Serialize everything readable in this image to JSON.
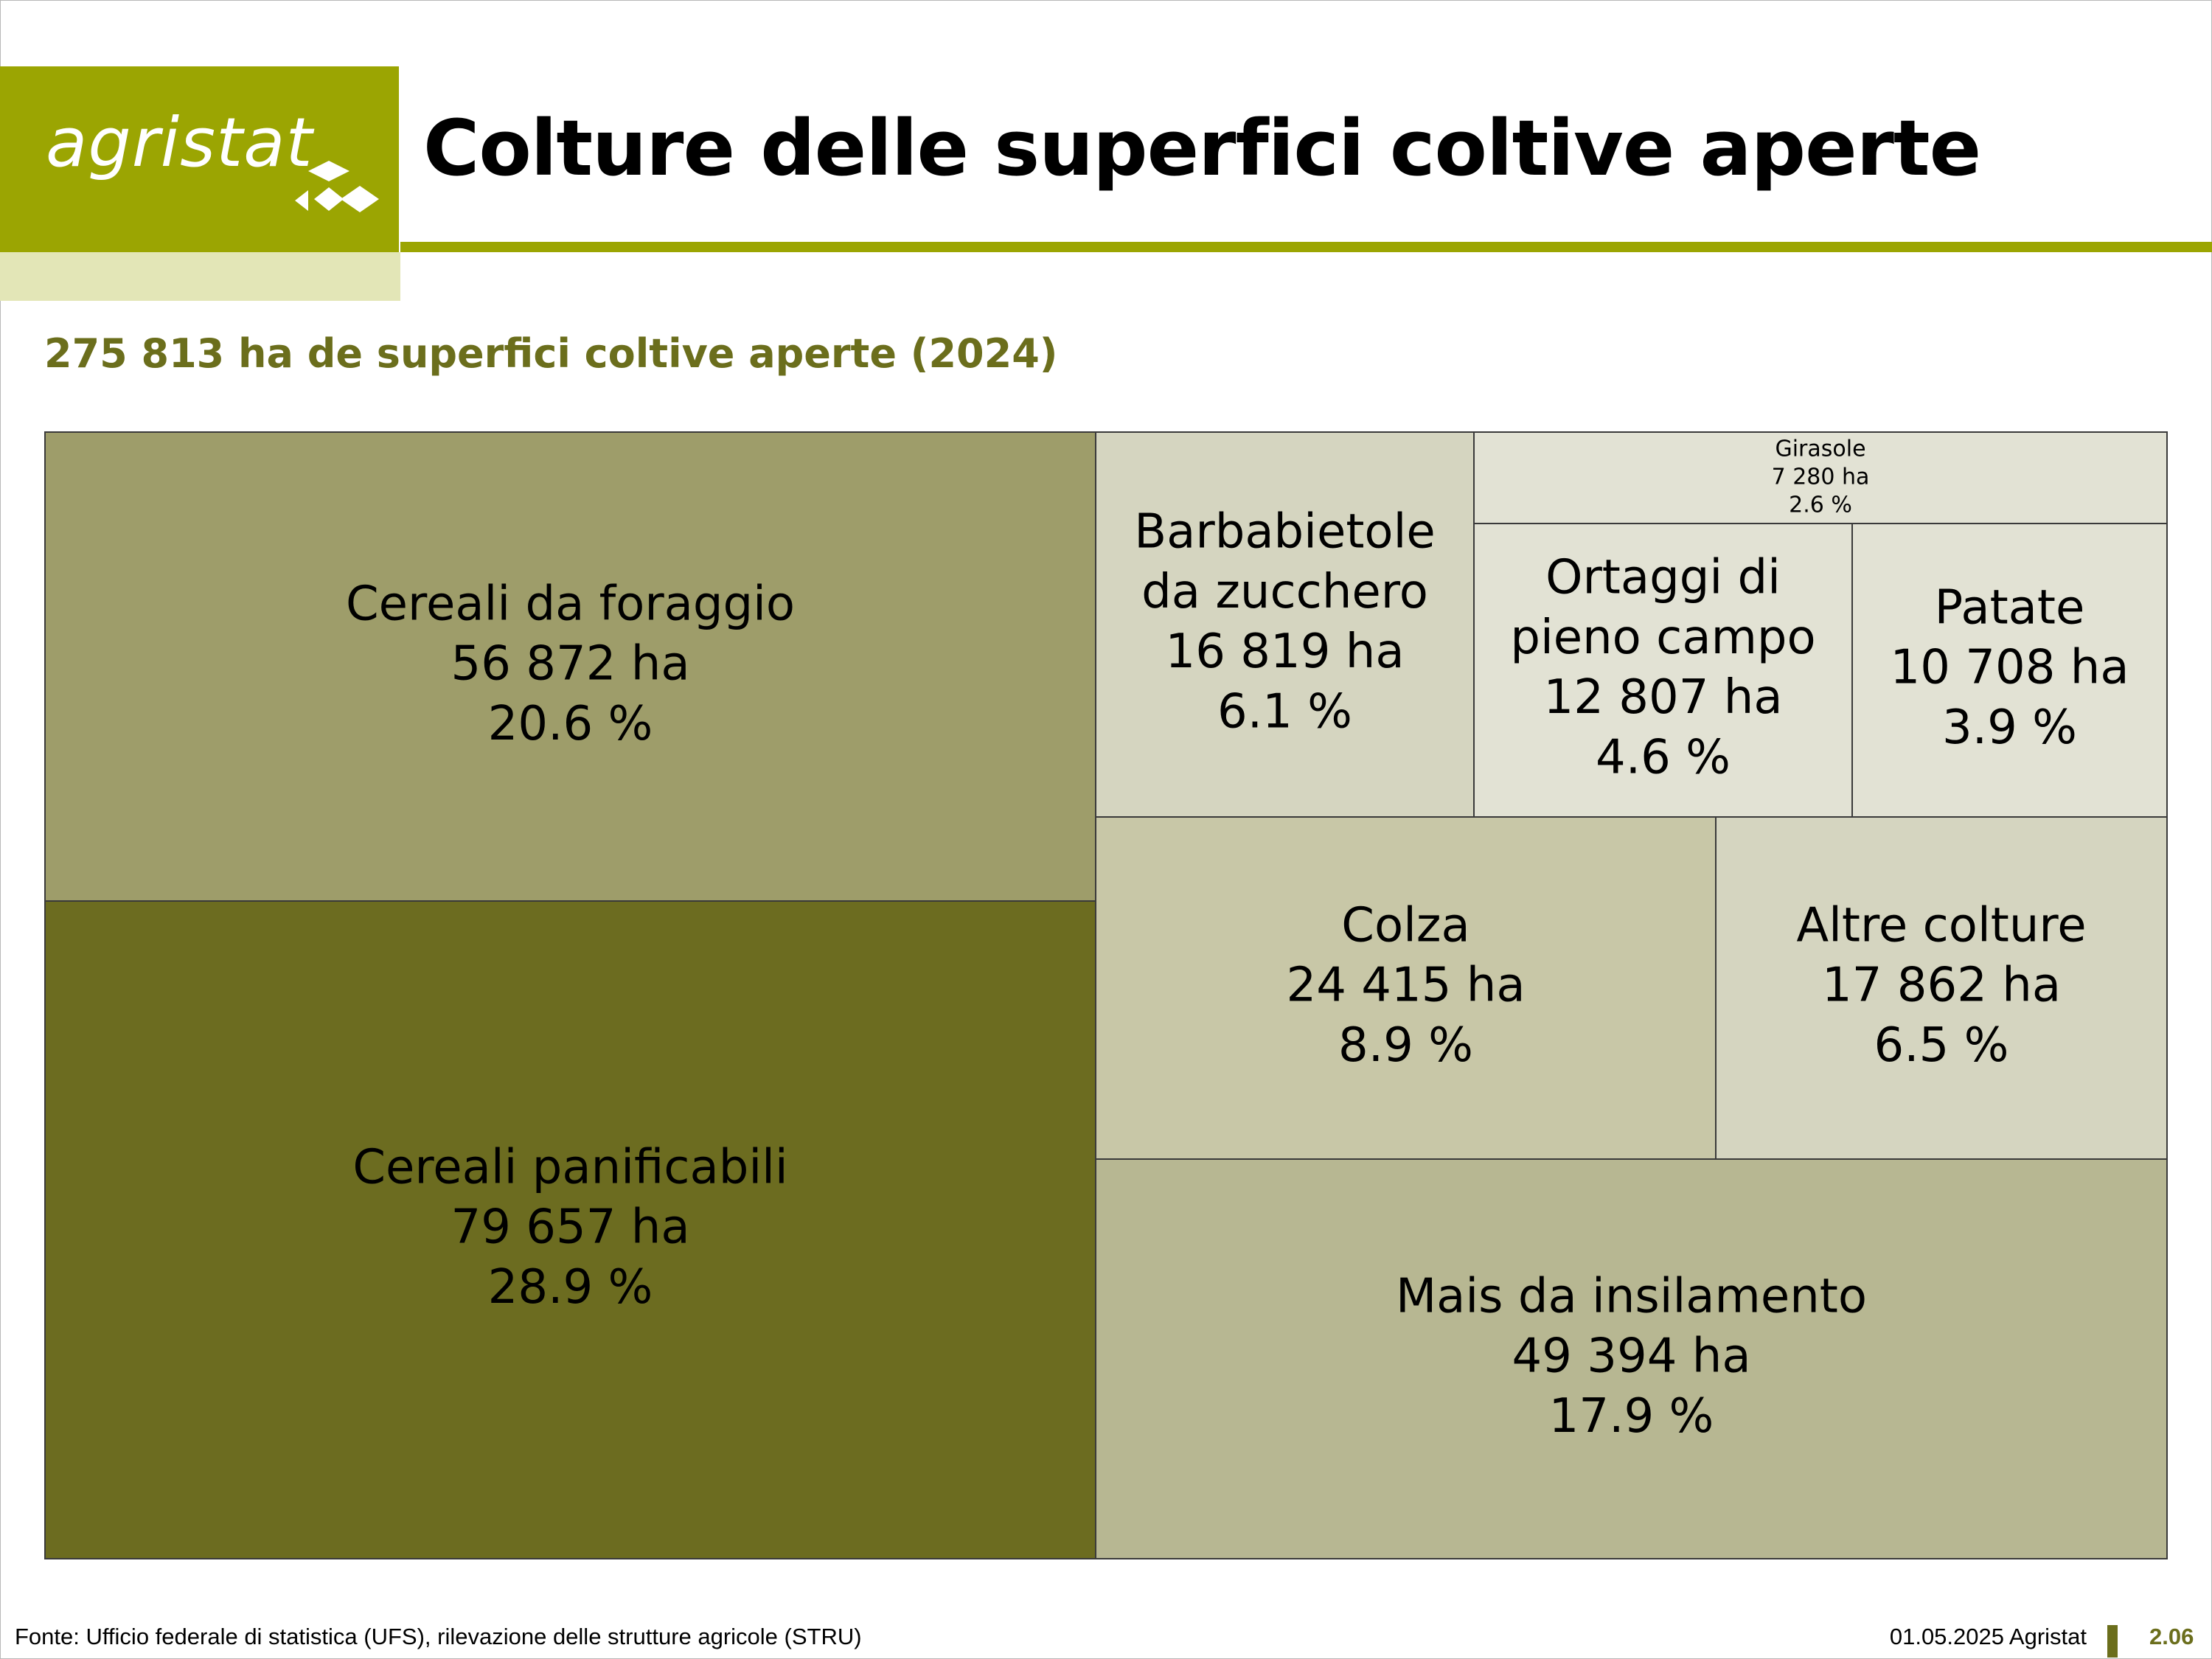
{
  "header": {
    "logo_text": "agristat",
    "title": "Colture delle superfici coltive aperte"
  },
  "colors": {
    "brand": "#9ba502",
    "brand_light": "#e3e6b7",
    "subtitle": "#6b6e1c"
  },
  "chart_data": {
    "type": "treemap",
    "title": "275 813 ha de superfici coltive aperte (2024)",
    "unit": "ha",
    "items": [
      {
        "label": "Cereali da foraggio",
        "value": 56872,
        "value_label": "56 872 ha",
        "percent_label": "20.6 %",
        "color": "#9e9d6a"
      },
      {
        "label": "Cereali panificabili",
        "value": 79657,
        "value_label": "79 657 ha",
        "percent_label": "28.9 %",
        "color": "#6c6c20"
      },
      {
        "label": "Barbabietole da zucchero",
        "value": 16819,
        "value_label": "16 819 ha",
        "percent_label": "6.1 %",
        "color": "#d5d5c0"
      },
      {
        "label": "Girasole",
        "value": 7280,
        "value_label": "7 280 ha",
        "percent_label": "2.6 %",
        "color": "#e2e2d4"
      },
      {
        "label": "Ortaggi di pieno campo",
        "value": 12807,
        "value_label": "12 807 ha",
        "percent_label": "4.6 %",
        "color": "#e2e2d4"
      },
      {
        "label": "Patate",
        "value": 10708,
        "value_label": "10 708 ha",
        "percent_label": "3.9 %",
        "color": "#e2e2d4"
      },
      {
        "label": "Colza",
        "value": 24415,
        "value_label": "24 415 ha",
        "percent_label": "8.9 %",
        "color": "#c8c7a7"
      },
      {
        "label": "Altre colture",
        "value": 17862,
        "value_label": "17 862 ha",
        "percent_label": "6.5 %",
        "color": "#d5d5c0"
      },
      {
        "label": "Mais da insilamento",
        "value": 49394,
        "value_label": "49 394 ha",
        "percent_label": "17.9 %",
        "color": "#b7b792"
      }
    ]
  },
  "footer": {
    "source": "Fonte: Ufficio federale di statistica (UFS), rilevazione delle strutture agricole (STRU)",
    "date": "01.05.2025 Agristat",
    "page": "2.06"
  }
}
